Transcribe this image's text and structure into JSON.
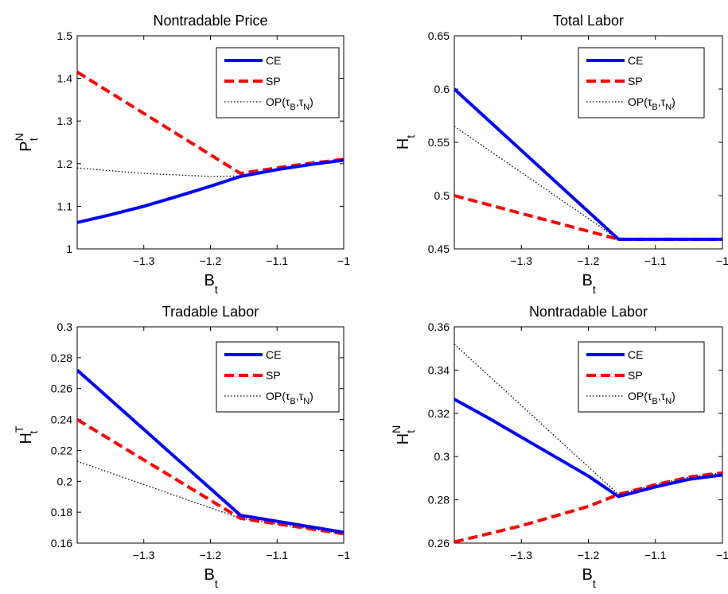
{
  "colors": {
    "CE": "#0000ff",
    "SP": "#ff0000",
    "OP": "#000000"
  },
  "legend": {
    "entries": [
      {
        "key": "CE",
        "label": "CE"
      },
      {
        "key": "SP",
        "label": "SP"
      },
      {
        "key": "OP",
        "label": "OP(τ",
        "sub1": "B",
        "mid": ",τ",
        "sub2": "N",
        "end": ")"
      }
    ]
  },
  "chart_data": [
    {
      "type": "line",
      "title": "Nontradable Price",
      "xlabel": {
        "main": "B",
        "sub": "t"
      },
      "ylabel": {
        "main": "P",
        "sup": "N",
        "sub": "t"
      },
      "xlim": [
        -1.4,
        -1.0
      ],
      "ylim": [
        1.0,
        1.5
      ],
      "xticks": [
        -1.3,
        -1.2,
        -1.1,
        -1.0
      ],
      "xticklabels": [
        "−1.3",
        "−1.2",
        "−1.1",
        "−1"
      ],
      "yticks": [
        1.0,
        1.1,
        1.2,
        1.3,
        1.4,
        1.5
      ],
      "yticklabels": [
        "1",
        "1.1",
        "1.2",
        "1.3",
        "1.4",
        "1.5"
      ],
      "series": [
        {
          "name": "CE",
          "x": [
            -1.4,
            -1.35,
            -1.3,
            -1.25,
            -1.2,
            -1.155,
            -1.1,
            -1.05,
            -1.0
          ],
          "y": [
            1.062,
            1.08,
            1.1,
            1.123,
            1.147,
            1.17,
            1.186,
            1.198,
            1.208
          ]
        },
        {
          "name": "SP",
          "x": [
            -1.4,
            -1.155,
            -1.1,
            -1.05,
            -1.0
          ],
          "y": [
            1.415,
            1.177,
            1.19,
            1.201,
            1.21
          ]
        },
        {
          "name": "OP",
          "x": [
            -1.4,
            -1.3,
            -1.2,
            -1.155,
            -1.1,
            -1.05,
            -1.0
          ],
          "y": [
            1.19,
            1.177,
            1.17,
            1.171,
            1.186,
            1.198,
            1.208
          ]
        }
      ]
    },
    {
      "type": "line",
      "title": "Total Labor",
      "xlabel": {
        "main": "B",
        "sub": "t"
      },
      "ylabel": {
        "main": "H",
        "sup": "",
        "sub": "t"
      },
      "xlim": [
        -1.4,
        -1.0
      ],
      "ylim": [
        0.45,
        0.65
      ],
      "xticks": [
        -1.3,
        -1.2,
        -1.1,
        -1.0
      ],
      "xticklabels": [
        "−1.3",
        "−1.2",
        "−1.1",
        "−1"
      ],
      "yticks": [
        0.45,
        0.5,
        0.55,
        0.6,
        0.65
      ],
      "yticklabels": [
        "0.45",
        "0.5",
        "0.55",
        "0.6",
        "0.65"
      ],
      "series": [
        {
          "name": "CE",
          "x": [
            -1.4,
            -1.155,
            -1.0
          ],
          "y": [
            0.6,
            0.459,
            0.459
          ]
        },
        {
          "name": "SP",
          "x": [
            -1.4,
            -1.155,
            -1.0
          ],
          "y": [
            0.5,
            0.459,
            0.459
          ]
        },
        {
          "name": "OP",
          "x": [
            -1.4,
            -1.155,
            -1.0
          ],
          "y": [
            0.565,
            0.459,
            0.459
          ]
        }
      ]
    },
    {
      "type": "line",
      "title": "Tradable Labor",
      "xlabel": {
        "main": "B",
        "sub": "t"
      },
      "ylabel": {
        "main": "H",
        "sup": "T",
        "sub": "t"
      },
      "xlim": [
        -1.4,
        -1.0
      ],
      "ylim": [
        0.16,
        0.3
      ],
      "xticks": [
        -1.3,
        -1.2,
        -1.1,
        -1.0
      ],
      "xticklabels": [
        "−1.3",
        "−1.2",
        "−1.1",
        "−1"
      ],
      "yticks": [
        0.16,
        0.18,
        0.2,
        0.22,
        0.24,
        0.26,
        0.28,
        0.3
      ],
      "yticklabels": [
        "0.16",
        "0.18",
        "0.2",
        "0.22",
        "0.24",
        "0.26",
        "0.28",
        "0.3"
      ],
      "series": [
        {
          "name": "CE",
          "x": [
            -1.4,
            -1.155,
            -1.0
          ],
          "y": [
            0.272,
            0.178,
            0.167
          ]
        },
        {
          "name": "SP",
          "x": [
            -1.4,
            -1.155,
            -1.0
          ],
          "y": [
            0.24,
            0.176,
            0.166
          ]
        },
        {
          "name": "OP",
          "x": [
            -1.4,
            -1.155,
            -1.0
          ],
          "y": [
            0.213,
            0.176,
            0.166
          ]
        }
      ]
    },
    {
      "type": "line",
      "title": "Nontradable Labor",
      "xlabel": {
        "main": "B",
        "sub": "t"
      },
      "ylabel": {
        "main": "H",
        "sup": "N",
        "sub": "t"
      },
      "xlim": [
        -1.4,
        -1.0
      ],
      "ylim": [
        0.26,
        0.36
      ],
      "xticks": [
        -1.3,
        -1.2,
        -1.1,
        -1.0
      ],
      "xticklabels": [
        "−1.3",
        "−1.2",
        "−1.1",
        "−1"
      ],
      "yticks": [
        0.26,
        0.28,
        0.3,
        0.32,
        0.34,
        0.36
      ],
      "yticklabels": [
        "0.26",
        "0.28",
        "0.3",
        "0.32",
        "0.34",
        "0.36"
      ],
      "series": [
        {
          "name": "CE",
          "x": [
            -1.4,
            -1.35,
            -1.3,
            -1.25,
            -1.2,
            -1.155,
            -1.1,
            -1.05,
            -1.0
          ],
          "y": [
            0.3265,
            0.318,
            0.309,
            0.3,
            0.291,
            0.2815,
            0.286,
            0.2895,
            0.2915
          ]
        },
        {
          "name": "SP",
          "x": [
            -1.4,
            -1.3,
            -1.2,
            -1.155,
            -1.1,
            -1.05,
            -1.0
          ],
          "y": [
            0.2605,
            0.268,
            0.277,
            0.2825,
            0.287,
            0.2905,
            0.2925
          ]
        },
        {
          "name": "OP",
          "x": [
            -1.4,
            -1.155,
            -1.1,
            -1.05,
            -1.0
          ],
          "y": [
            0.352,
            0.2825,
            0.287,
            0.2905,
            0.2925
          ]
        }
      ]
    }
  ]
}
